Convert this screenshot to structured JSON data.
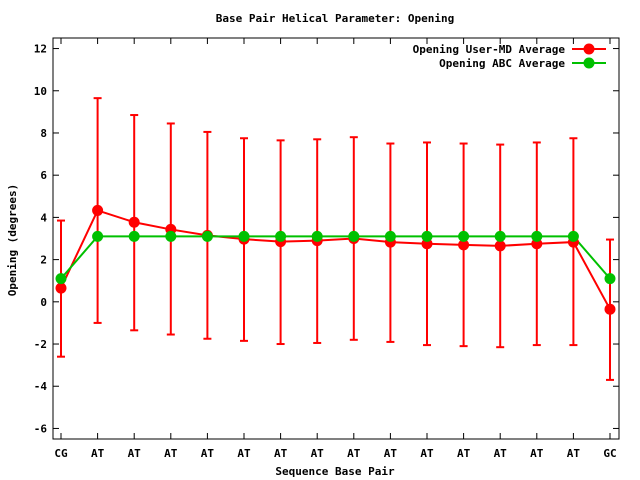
{
  "chart_data": {
    "type": "line",
    "title": "Base Pair Helical Parameter: Opening",
    "xlabel": "Sequence Base Pair",
    "ylabel": "Opening (degrees)",
    "categories": [
      "CG",
      "AT",
      "AT",
      "AT",
      "AT",
      "AT",
      "AT",
      "AT",
      "AT",
      "AT",
      "AT",
      "AT",
      "AT",
      "AT",
      "AT",
      "GC"
    ],
    "ylim": [
      -6.5,
      12.5
    ],
    "yticks": [
      -6,
      -4,
      -2,
      0,
      2,
      4,
      6,
      8,
      10,
      12
    ],
    "legend_position": "top-right",
    "grid": false,
    "series": [
      {
        "name": "Opening User-MD Average",
        "color": "#ff0000",
        "values": [
          0.65,
          4.33,
          3.77,
          3.43,
          3.15,
          2.97,
          2.85,
          2.9,
          3.0,
          2.83,
          2.75,
          2.7,
          2.65,
          2.75,
          2.83,
          -0.35
        ],
        "err_low": [
          -2.6,
          -1.0,
          -1.35,
          -1.55,
          -1.75,
          -1.85,
          -2.0,
          -1.95,
          -1.8,
          -1.9,
          -2.05,
          -2.1,
          -2.15,
          -2.05,
          -2.05,
          -3.7
        ],
        "err_high": [
          3.85,
          9.65,
          8.85,
          8.45,
          8.05,
          7.75,
          7.65,
          7.7,
          7.8,
          7.5,
          7.55,
          7.5,
          7.45,
          7.55,
          7.75,
          2.95
        ]
      },
      {
        "name": "Opening ABC Average",
        "color": "#00c000",
        "values": [
          1.1,
          3.1,
          3.1,
          3.1,
          3.1,
          3.1,
          3.1,
          3.1,
          3.1,
          3.1,
          3.1,
          3.1,
          3.1,
          3.1,
          3.1,
          1.1
        ]
      }
    ]
  }
}
